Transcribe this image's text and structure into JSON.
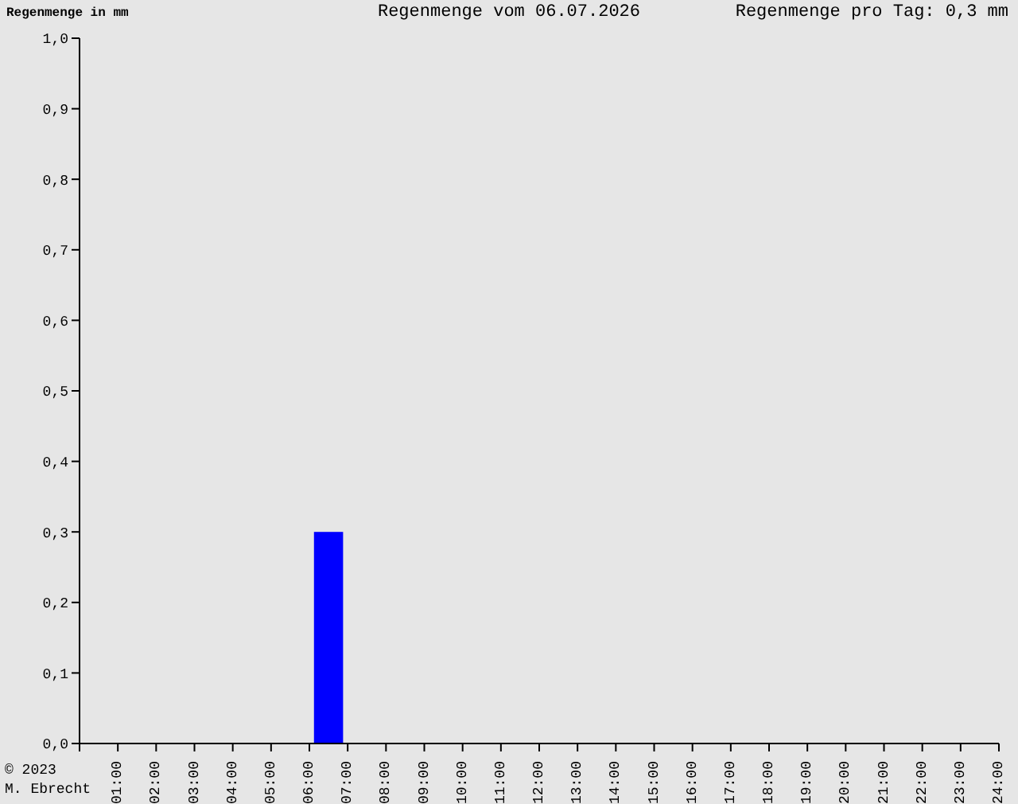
{
  "chart_data": {
    "type": "histogram",
    "title": "Regenmenge vom 06.07.2026",
    "subtitle": "Regenmenge pro Tag: 0,3 mm",
    "ylabel": "Regenmenge in mm",
    "annotations": [
      "© 2023\nM. Ebrecht"
    ],
    "bins": [
      0,
      1,
      2,
      3,
      4,
      5,
      6,
      7,
      8,
      9,
      10,
      11,
      12,
      13,
      14,
      15,
      16,
      17,
      18,
      19,
      20,
      21,
      22,
      23,
      24
    ],
    "values": [
      0,
      0,
      0,
      0,
      0,
      0,
      0.3,
      0,
      0,
      0,
      0,
      0,
      0,
      0,
      0,
      0,
      0,
      0,
      0,
      0,
      0,
      0,
      0,
      0
    ],
    "color": "#0000ff",
    "xlim": [
      0,
      24
    ],
    "xticks": [
      {
        "value": 0,
        "label": null
      },
      {
        "value": 1,
        "label": "01:00"
      },
      {
        "value": 2,
        "label": "02:00"
      },
      {
        "value": 3,
        "label": "03:00"
      },
      {
        "value": 4,
        "label": "04:00"
      },
      {
        "value": 5,
        "label": "05:00"
      },
      {
        "value": 6,
        "label": "06:00"
      },
      {
        "value": 7,
        "label": "07:00"
      },
      {
        "value": 8,
        "label": "08:00"
      },
      {
        "value": 9,
        "label": "09:00"
      },
      {
        "value": 10,
        "label": "10:00"
      },
      {
        "value": 11,
        "label": "11:00"
      },
      {
        "value": 12,
        "label": "12:00"
      },
      {
        "value": 13,
        "label": "13:00"
      },
      {
        "value": 14,
        "label": "14:00"
      },
      {
        "value": 15,
        "label": "15:00"
      },
      {
        "value": 16,
        "label": "16:00"
      },
      {
        "value": 17,
        "label": "17:00"
      },
      {
        "value": 18,
        "label": "18:00"
      },
      {
        "value": 19,
        "label": "19:00"
      },
      {
        "value": 20,
        "label": "20:00"
      },
      {
        "value": 21,
        "label": "21:00"
      },
      {
        "value": 22,
        "label": "22:00"
      },
      {
        "value": 23,
        "label": "23:00"
      },
      {
        "value": 24,
        "label": "24:00"
      }
    ],
    "ylim": [
      0,
      1
    ],
    "yticks": [
      {
        "value": 0,
        "label": "0,0"
      },
      {
        "value": 0.1,
        "label": "0,1"
      },
      {
        "value": 0.2,
        "label": "0,2"
      },
      {
        "value": 0.3,
        "label": "0,3"
      },
      {
        "value": 0.4,
        "label": "0,4"
      },
      {
        "value": 0.5,
        "label": "0,5"
      },
      {
        "value": 0.6,
        "label": "0,6"
      },
      {
        "value": 0.7,
        "label": "0,7"
      },
      {
        "value": 0.8,
        "label": "0,8"
      },
      {
        "value": 0.9,
        "label": "0,9"
      },
      {
        "value": 1,
        "label": "1,0"
      }
    ],
    "grid": false,
    "legend": false
  }
}
